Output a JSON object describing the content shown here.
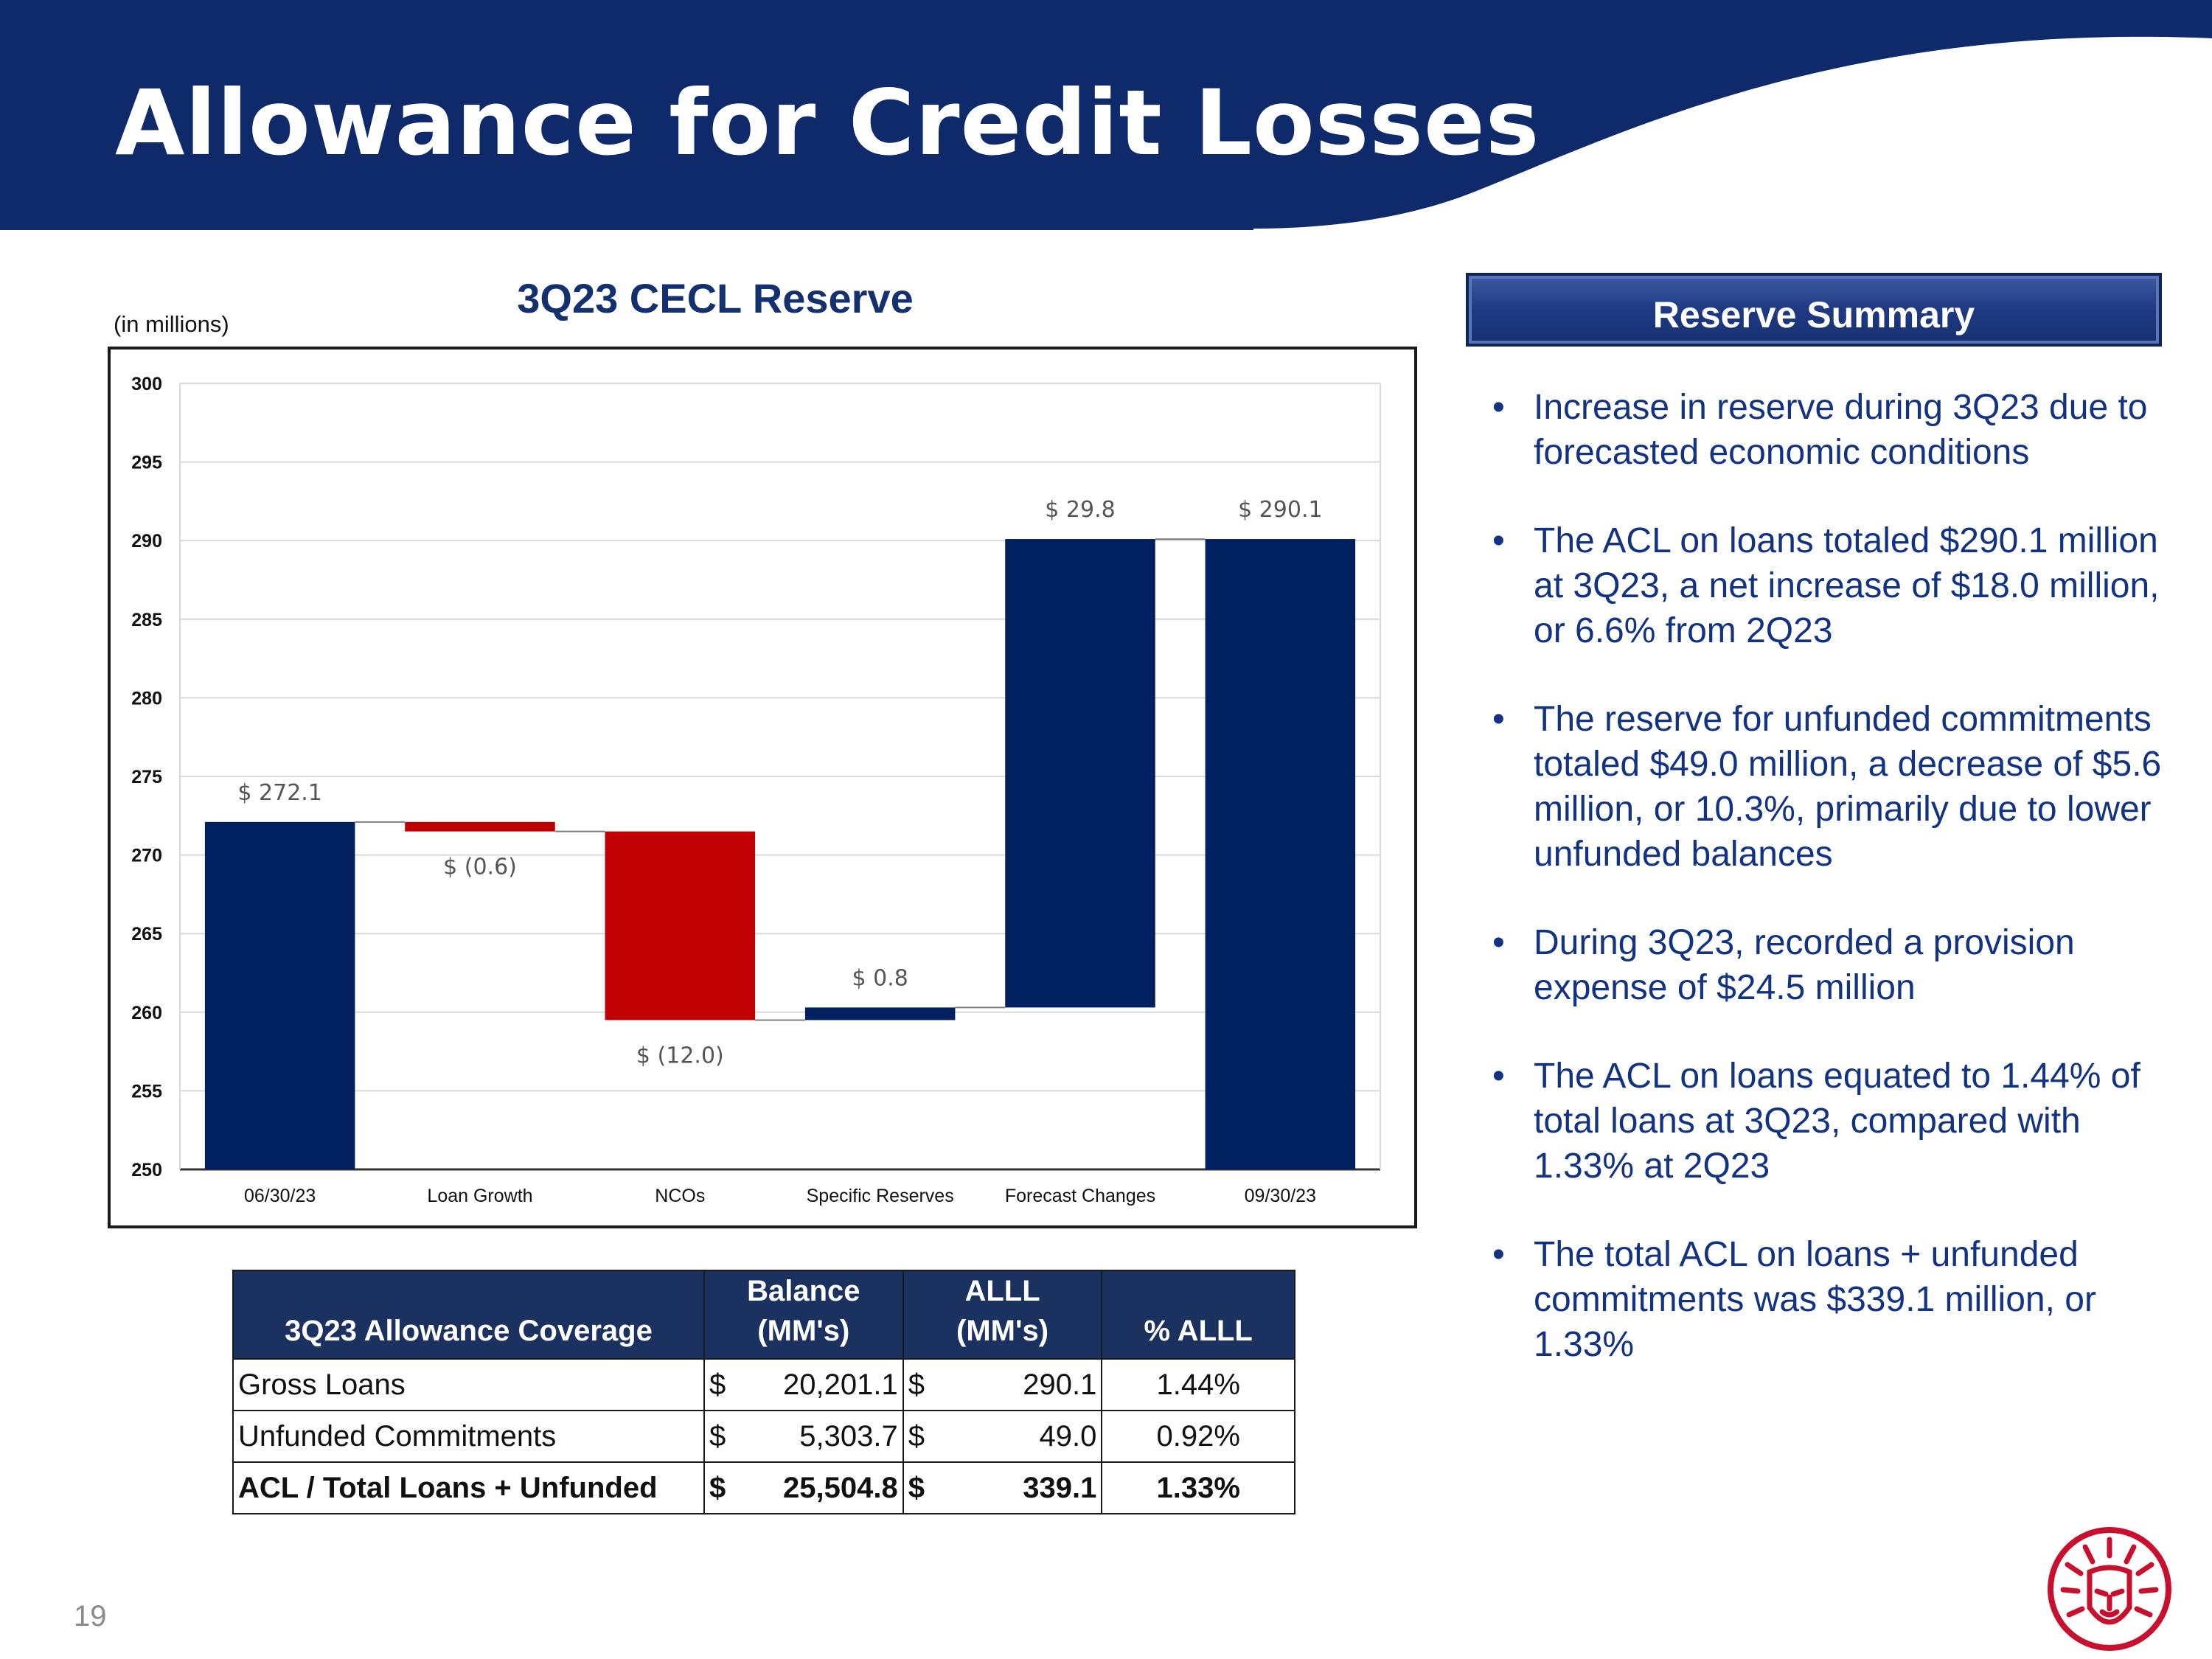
{
  "page": {
    "title": "Allowance for Credit Losses",
    "number": "19",
    "brand_color": "#0d2b6e",
    "accent_color": "#c8102e",
    "logo_icon": "lion-head-icon"
  },
  "chart_data": {
    "type": "bar",
    "subtype": "waterfall",
    "title": "3Q23 CECL Reserve",
    "unit_note": "(in millions)",
    "categories": [
      "06/30/23",
      "Loan Growth",
      "NCOs",
      "Specific Reserves",
      "Forecast Changes",
      "09/30/23"
    ],
    "values": [
      272.1,
      -0.6,
      -12.0,
      0.8,
      29.8,
      290.1
    ],
    "data_labels": [
      "$ 272.1",
      "$ (0.6)",
      "$ (12.0)",
      "$ 0.8",
      "$ 29.8",
      "$ 290.1"
    ],
    "bar_kind": [
      "total",
      "delta",
      "delta",
      "delta",
      "delta",
      "total"
    ],
    "ylim": [
      250,
      300
    ],
    "yticks": [
      250,
      255,
      260,
      265,
      270,
      275,
      280,
      285,
      290,
      295,
      300
    ],
    "grid": true,
    "colors": {
      "total": "#002060",
      "increase": "#002060",
      "decrease": "#c00000"
    },
    "xlabel": "",
    "ylabel": ""
  },
  "table": {
    "headers": [
      "3Q23 Allowance Coverage",
      "Balance (MM's)",
      "ALLL (MM's)",
      "% ALLL"
    ],
    "header_lines": {
      "balance": [
        "Balance",
        "(MM's)"
      ],
      "alll": [
        "ALLL",
        "(MM's)"
      ]
    },
    "rows": [
      {
        "label": "Gross Loans",
        "balance": "20,201.1",
        "alll": "290.1",
        "pct": "1.44%"
      },
      {
        "label": "Unfunded Commitments",
        "balance": "5,303.7",
        "alll": "49.0",
        "pct": "0.92%"
      },
      {
        "label": "ACL / Total Loans + Unfunded",
        "balance": "25,504.8",
        "alll": "339.1",
        "pct": "1.33%"
      }
    ],
    "currency_symbol": "$"
  },
  "summary": {
    "title": "Reserve Summary",
    "bullets": [
      "Increase in reserve during 3Q23 due to forecasted economic conditions",
      "The ACL on loans totaled $290.1 million at 3Q23, a net increase of $18.0 million, or 6.6% from 2Q23",
      "The reserve for unfunded commitments totaled $49.0 million, a decrease of $5.6 million, or 10.3%, primarily due to lower unfunded balances",
      "During 3Q23, recorded a provision expense of $24.5 million",
      "The ACL on loans equated to 1.44% of total loans at 3Q23, compared with 1.33% at 2Q23",
      "The total ACL on loans + unfunded commitments was $339.1 million, or 1.33%"
    ]
  }
}
